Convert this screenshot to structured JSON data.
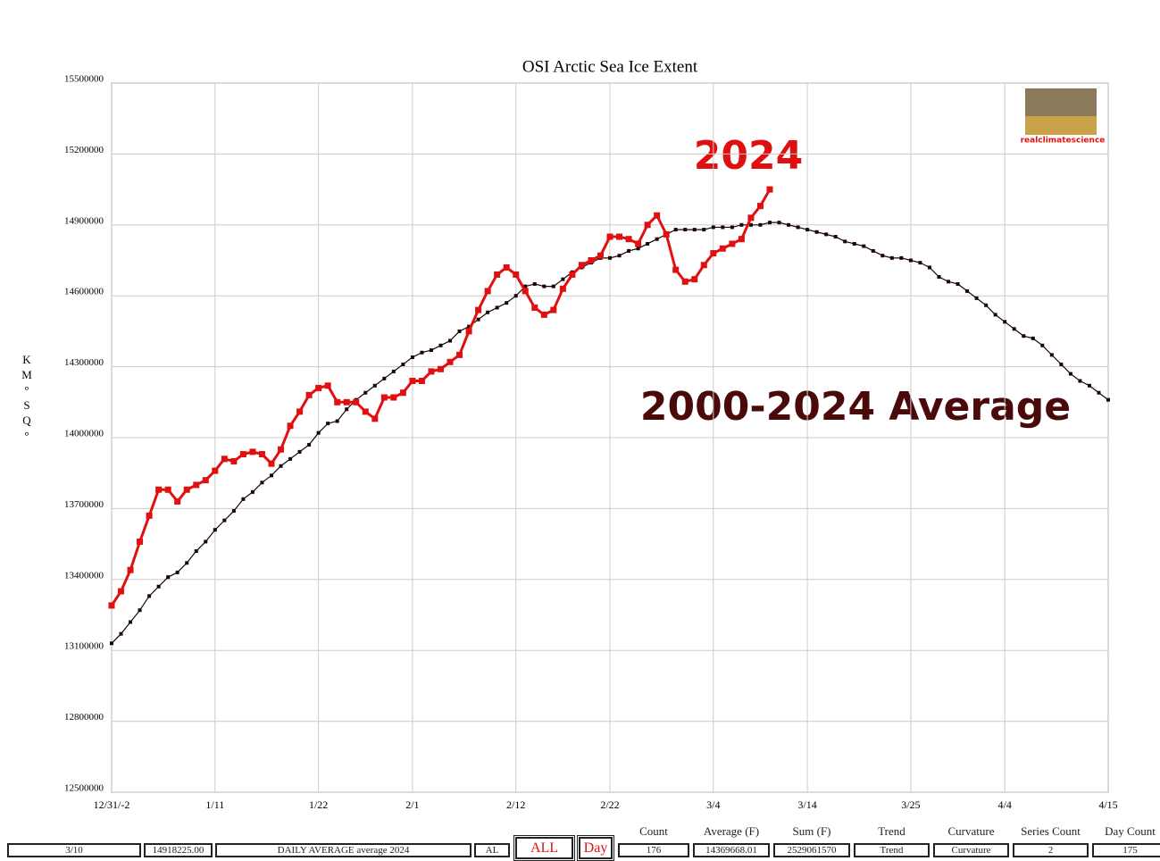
{
  "chart_data": {
    "type": "line",
    "title": "OSI Arctic Sea Ice Extent",
    "y_label": "KM°SQ°",
    "logo_text": "realclimatescience",
    "annotations": [
      "2024",
      "2000-2024 Average"
    ],
    "xlim": [
      0,
      106
    ],
    "xticks": [
      {
        "value": 0,
        "label": "12/31/-2"
      },
      {
        "value": 11,
        "label": "1/11"
      },
      {
        "value": 22,
        "label": "1/22"
      },
      {
        "value": 32,
        "label": "2/1"
      },
      {
        "value": 43,
        "label": "2/12"
      },
      {
        "value": 53,
        "label": "2/22"
      },
      {
        "value": 64,
        "label": "3/4"
      },
      {
        "value": 74,
        "label": "3/14"
      },
      {
        "value": 85,
        "label": "3/25"
      },
      {
        "value": 95,
        "label": "4/4"
      },
      {
        "value": 106,
        "label": "4/15"
      }
    ],
    "ylim": [
      12500000,
      15500000
    ],
    "yticks": [
      12500000,
      12800000,
      13100000,
      13400000,
      13700000,
      14000000,
      14300000,
      14600000,
      14900000,
      15200000,
      15500000
    ],
    "grid": true,
    "series": [
      {
        "name": "2024",
        "color": "#e01010",
        "values": [
          13290000,
          13350000,
          13440000,
          13560000,
          13670000,
          13780000,
          13780000,
          13730000,
          13780000,
          13800000,
          13820000,
          13860000,
          13910000,
          13900000,
          13930000,
          13940000,
          13930000,
          13890000,
          13950000,
          14050000,
          14110000,
          14180000,
          14210000,
          14220000,
          14150000,
          14150000,
          14150000,
          14110000,
          14080000,
          14170000,
          14170000,
          14190000,
          14240000,
          14240000,
          14280000,
          14290000,
          14320000,
          14350000,
          14450000,
          14540000,
          14620000,
          14690000,
          14720000,
          14690000,
          14620000,
          14550000,
          14520000,
          14540000,
          14630000,
          14690000,
          14730000,
          14750000,
          14770000,
          14850000,
          14850000,
          14840000,
          14820000,
          14900000,
          14940000,
          14860000,
          14710000,
          14660000,
          14670000,
          14730000,
          14780000,
          14800000,
          14820000,
          14840000,
          14930000,
          14980000,
          15050000
        ]
      },
      {
        "name": "2000-2024 Average",
        "color": "#1a0505",
        "values": [
          13130000,
          13170000,
          13220000,
          13270000,
          13330000,
          13370000,
          13410000,
          13430000,
          13470000,
          13520000,
          13560000,
          13610000,
          13650000,
          13690000,
          13740000,
          13770000,
          13810000,
          13840000,
          13880000,
          13910000,
          13940000,
          13970000,
          14020000,
          14060000,
          14070000,
          14120000,
          14160000,
          14190000,
          14220000,
          14250000,
          14280000,
          14310000,
          14340000,
          14360000,
          14370000,
          14390000,
          14410000,
          14450000,
          14470000,
          14500000,
          14530000,
          14550000,
          14570000,
          14600000,
          14640000,
          14650000,
          14640000,
          14640000,
          14670000,
          14700000,
          14720000,
          14740000,
          14760000,
          14760000,
          14770000,
          14790000,
          14800000,
          14820000,
          14840000,
          14860000,
          14880000,
          14880000,
          14880000,
          14880000,
          14890000,
          14890000,
          14890000,
          14900000,
          14900000,
          14900000,
          14910000,
          14910000,
          14900000,
          14890000,
          14880000,
          14870000,
          14860000,
          14850000,
          14830000,
          14820000,
          14810000,
          14790000,
          14770000,
          14760000,
          14760000,
          14750000,
          14740000,
          14720000,
          14680000,
          14660000,
          14650000,
          14620000,
          14590000,
          14560000,
          14520000,
          14490000,
          14460000,
          14430000,
          14420000,
          14390000,
          14350000,
          14310000,
          14270000,
          14240000,
          14220000,
          14190000,
          14160000
        ]
      }
    ]
  },
  "controls": {
    "date": "3/10",
    "value": "14918225.00",
    "series_label": "DAILY AVERAGE average 2024",
    "al": "AL",
    "all_button": "ALL",
    "day_button": "Day",
    "stats": [
      {
        "label": "Count",
        "value": "176"
      },
      {
        "label": "Average (F)",
        "value": "14369668.01"
      },
      {
        "label": "Sum (F)",
        "value": "2529061570"
      },
      {
        "label": "Trend",
        "value": "Trend"
      },
      {
        "label": "Curvature",
        "value": "Curvature"
      },
      {
        "label": "Series Count",
        "value": "2"
      },
      {
        "label": "Day Count",
        "value": "175"
      }
    ]
  }
}
